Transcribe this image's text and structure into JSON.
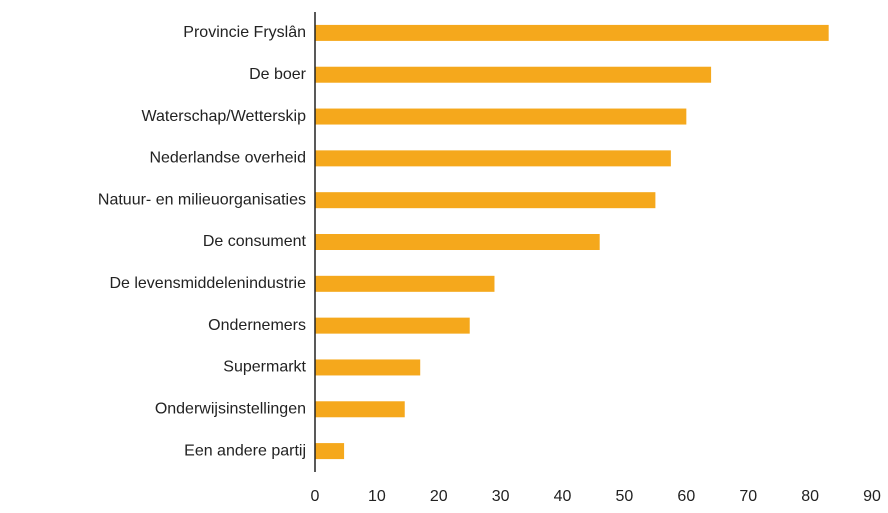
{
  "chart_data": {
    "type": "barh",
    "categories": [
      "Provincie Fryslân",
      "De boer",
      "Waterschap/Wetterskip",
      "Nederlandse overheid",
      "Natuur- en milieuorganisaties",
      "De consument",
      "De levensmiddelenindustrie",
      "Ondernemers",
      "Supermarkt",
      "Onderwijsinstellingen",
      "Een andere partij"
    ],
    "values": [
      83,
      64,
      60,
      57.5,
      55,
      46,
      29,
      25,
      17,
      14.5,
      4.7
    ],
    "color": "#f5a81c",
    "xlim": [
      0,
      90
    ],
    "xticks": [
      0,
      10,
      20,
      30,
      40,
      50,
      60,
      70,
      80,
      90
    ],
    "grid": false
  }
}
